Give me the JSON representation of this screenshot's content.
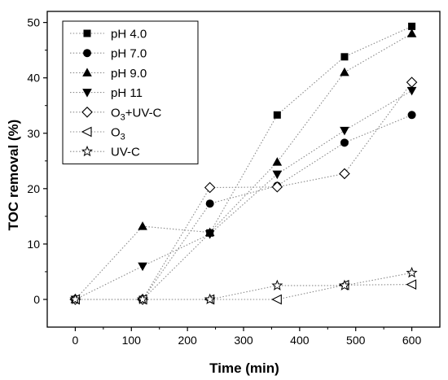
{
  "chart_data": {
    "type": "line",
    "xlabel": "Time (min)",
    "ylabel": "TOC removal (%)",
    "xlim": [
      -50,
      650
    ],
    "ylim": [
      -5,
      52
    ],
    "xticks": [
      0,
      100,
      200,
      300,
      400,
      500,
      600
    ],
    "yticks": [
      0,
      10,
      20,
      30,
      40,
      50
    ],
    "grid": false,
    "legend_position": "top-left",
    "series": [
      {
        "name": "pH 4.0",
        "label_main": "pH 4.0",
        "label_sub": "",
        "label_tail": "",
        "marker": "square-filled",
        "x": [
          0,
          120,
          240,
          360,
          480,
          600
        ],
        "y": [
          0,
          0,
          12,
          33.3,
          43.8,
          49.3
        ]
      },
      {
        "name": "pH 7.0",
        "label_main": "pH 7.0",
        "label_sub": "",
        "label_tail": "",
        "marker": "circle-filled",
        "x": [
          0,
          120,
          240,
          360,
          480,
          600
        ],
        "y": [
          0,
          0,
          17.3,
          20.5,
          28.3,
          33.3
        ]
      },
      {
        "name": "pH 9.0",
        "label_main": "pH 9.0",
        "label_sub": "",
        "label_tail": "",
        "marker": "triangle-up-filled",
        "x": [
          0,
          120,
          240,
          360,
          480,
          600
        ],
        "y": [
          0,
          13.2,
          12.1,
          24.8,
          41,
          48
        ]
      },
      {
        "name": "pH 11",
        "label_main": "pH 11",
        "label_sub": "",
        "label_tail": "",
        "marker": "triangle-down-filled",
        "x": [
          0,
          120,
          240,
          360,
          480,
          600
        ],
        "y": [
          0,
          6,
          11.8,
          22.6,
          30.5,
          37.7
        ]
      },
      {
        "name": "O3+UV-C",
        "label_main": "O",
        "label_sub": "3",
        "label_tail": "+UV-C",
        "marker": "diamond-open",
        "x": [
          0,
          120,
          240,
          360,
          480,
          600
        ],
        "y": [
          0,
          0,
          20.2,
          20.3,
          22.7,
          39.2
        ]
      },
      {
        "name": "O3",
        "label_main": "O",
        "label_sub": "3",
        "label_tail": "",
        "marker": "triangle-left-open",
        "x": [
          0,
          120,
          240,
          360,
          480,
          600
        ],
        "y": [
          0,
          0,
          0,
          0,
          2.6,
          2.7
        ]
      },
      {
        "name": "UV-C",
        "label_main": "UV-C",
        "label_sub": "",
        "label_tail": "",
        "marker": "star-open",
        "x": [
          0,
          120,
          240,
          360,
          480,
          600
        ],
        "y": [
          0,
          0,
          0,
          2.5,
          2.5,
          4.8
        ]
      }
    ]
  }
}
